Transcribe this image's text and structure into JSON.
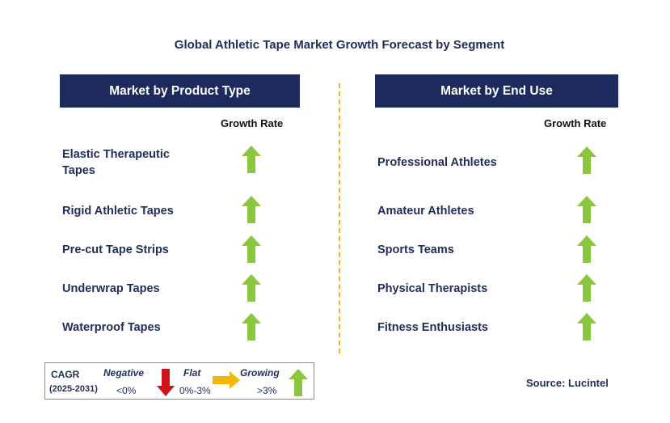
{
  "title": "Global Athletic Tape Market Growth Forecast by Segment",
  "left_panel": {
    "header": "Market by Product Type",
    "growth_label": "Growth Rate",
    "items": [
      {
        "label_line1": "Elastic Therapeutic",
        "label_line2": "Tapes",
        "trend": "growing"
      },
      {
        "label_line1": "Rigid Athletic Tapes",
        "label_line2": "",
        "trend": "growing"
      },
      {
        "label_line1": "Pre-cut Tape Strips",
        "label_line2": "",
        "trend": "growing"
      },
      {
        "label_line1": "Underwrap Tapes",
        "label_line2": "",
        "trend": "growing"
      },
      {
        "label_line1": "Waterproof Tapes",
        "label_line2": "",
        "trend": "growing"
      }
    ]
  },
  "right_panel": {
    "header": "Market by End Use",
    "growth_label": "Growth Rate",
    "items": [
      {
        "label": "Professional Athletes",
        "trend": "growing"
      },
      {
        "label": "Amateur Athletes",
        "trend": "growing"
      },
      {
        "label": "Sports Teams",
        "trend": "growing"
      },
      {
        "label": "Physical Therapists",
        "trend": "growing"
      },
      {
        "label": "Fitness Enthusiasts",
        "trend": "growing"
      }
    ]
  },
  "legend": {
    "cagr": "CAGR",
    "period": "(2025-2031)",
    "negative_label": "Negative",
    "negative_range": "<0%",
    "flat_label": "Flat",
    "flat_range": "0%-3%",
    "growing_label": "Growing",
    "growing_range": ">3%"
  },
  "source": "Source: Lucintel",
  "colors": {
    "header_bg": "#1c2a5e",
    "text_navy": "#1f2d5a",
    "growing_arrow": "#8cc63f",
    "negative_arrow": "#d0131b",
    "flat_arrow": "#f5b800",
    "divider": "#f2b51c"
  }
}
